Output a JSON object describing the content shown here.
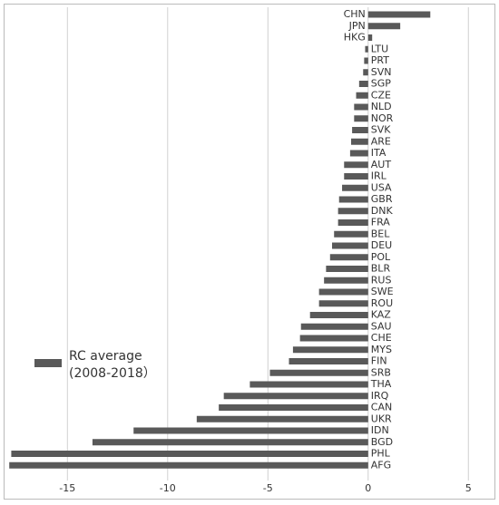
{
  "chart_data": {
    "type": "hbar",
    "categories": [
      "CHN",
      "JPN",
      "HKG",
      "LTU",
      "PRT",
      "SVN",
      "SGP",
      "CZE",
      "NLD",
      "NOR",
      "SVK",
      "ARE",
      "ITA",
      "AUT",
      "IRL",
      "USA",
      "GBR",
      "DNK",
      "FRA",
      "BEL",
      "DEU",
      "POL",
      "BLR",
      "RUS",
      "SWE",
      "ROU",
      "KAZ",
      "SAU",
      "CHE",
      "MYS",
      "FIN",
      "SRB",
      "THA",
      "IRQ",
      "CAN",
      "UKR",
      "IDN",
      "BGD",
      "PHL",
      "AFG"
    ],
    "series": [
      {
        "name": "RC average (2008-2018）",
        "color": "#595959",
        "values": [
          3.1,
          1.6,
          0.2,
          -0.15,
          -0.2,
          -0.25,
          -0.45,
          -0.6,
          -0.7,
          -0.7,
          -0.8,
          -0.85,
          -0.9,
          -1.2,
          -1.2,
          -1.3,
          -1.45,
          -1.5,
          -1.5,
          -1.7,
          -1.8,
          -1.9,
          -2.1,
          -2.2,
          -2.45,
          -2.45,
          -2.9,
          -3.35,
          -3.4,
          -3.75,
          -3.95,
          -4.9,
          -5.9,
          -7.2,
          -7.45,
          -8.55,
          -11.7,
          -13.75,
          -17.8,
          -17.9
        ]
      }
    ],
    "xlim": [
      -18,
      6.3
    ],
    "xticks": [
      -15,
      -10,
      -5,
      0,
      5
    ],
    "grid": true,
    "legend": "left"
  }
}
